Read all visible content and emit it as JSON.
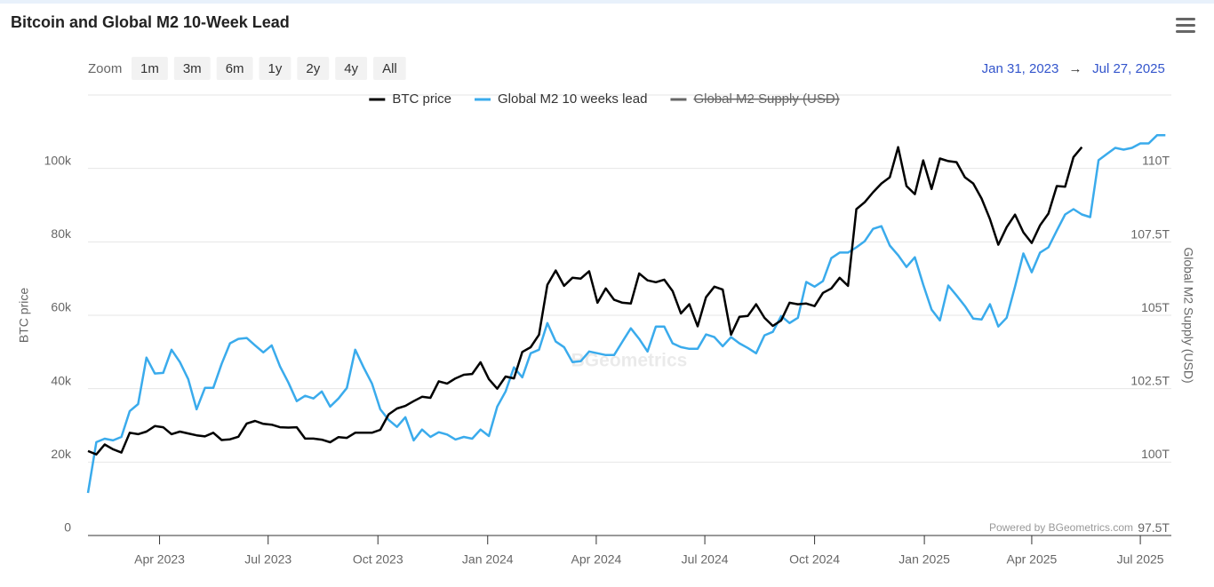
{
  "chart_data": {
    "type": "line",
    "title": "Bitcoin and Global M2 10-Week Lead",
    "zoom_label": "Zoom",
    "zoom_buttons": [
      "1m",
      "3m",
      "6m",
      "1y",
      "2y",
      "4y",
      "All"
    ],
    "range": {
      "from": "Jan 31, 2023",
      "arrow": "→",
      "to": "Jul 27, 2025"
    },
    "y_label": "BTC price",
    "y2_label": "Global M2 Supply (USD)",
    "credits": "Powered by BGeometrics.com",
    "watermark": "BGeometrics",
    "xlim": [
      "2023-01-31",
      "2025-07-27"
    ],
    "xticks": [
      {
        "value": "2023-04-01",
        "label": "Apr 2023"
      },
      {
        "value": "2023-07-01",
        "label": "Jul 2023"
      },
      {
        "value": "2023-10-01",
        "label": "Oct 2023"
      },
      {
        "value": "2024-01-01",
        "label": "Jan 2024"
      },
      {
        "value": "2024-04-01",
        "label": "Apr 2024"
      },
      {
        "value": "2024-07-01",
        "label": "Jul 2024"
      },
      {
        "value": "2024-10-01",
        "label": "Oct 2024"
      },
      {
        "value": "2025-01-01",
        "label": "Jan 2025"
      },
      {
        "value": "2025-04-01",
        "label": "Apr 2025"
      },
      {
        "value": "2025-07-01",
        "label": "Jul 2025"
      }
    ],
    "ylim": [
      0,
      120000
    ],
    "yticks": [
      0,
      {
        "value": 20000,
        "label": "20k"
      },
      {
        "value": 40000,
        "label": "40k"
      },
      {
        "value": 60000,
        "label": "60k"
      },
      {
        "value": 80000,
        "label": "80k"
      },
      {
        "value": 100000,
        "label": "100k"
      }
    ],
    "y2lim": [
      97.26,
      112.27
    ],
    "y2ticks": [
      {
        "value": 97.5,
        "label": "97.5T"
      },
      {
        "value": 100,
        "label": "100T"
      },
      {
        "value": 102.5,
        "label": "102.5T"
      },
      {
        "value": 105,
        "label": "105T"
      },
      {
        "value": 107.5,
        "label": "107.5T"
      },
      {
        "value": 110,
        "label": "110T"
      }
    ],
    "grid": true,
    "x": [
      "2023-01-31",
      "2023-02-07",
      "2023-02-14",
      "2023-02-21",
      "2023-02-28",
      "2023-03-07",
      "2023-03-14",
      "2023-03-21",
      "2023-03-28",
      "2023-04-04",
      "2023-04-11",
      "2023-04-18",
      "2023-04-25",
      "2023-05-02",
      "2023-05-09",
      "2023-05-16",
      "2023-05-23",
      "2023-05-30",
      "2023-06-06",
      "2023-06-13",
      "2023-06-20",
      "2023-06-27",
      "2023-07-04",
      "2023-07-11",
      "2023-07-18",
      "2023-07-25",
      "2023-08-01",
      "2023-08-08",
      "2023-08-15",
      "2023-08-22",
      "2023-08-29",
      "2023-09-05",
      "2023-09-12",
      "2023-09-19",
      "2023-09-26",
      "2023-10-03",
      "2023-10-10",
      "2023-10-17",
      "2023-10-24",
      "2023-10-31",
      "2023-11-07",
      "2023-11-14",
      "2023-11-21",
      "2023-11-28",
      "2023-12-05",
      "2023-12-12",
      "2023-12-19",
      "2023-12-26",
      "2024-01-02",
      "2024-01-09",
      "2024-01-16",
      "2024-01-23",
      "2024-01-30",
      "2024-02-06",
      "2024-02-13",
      "2024-02-20",
      "2024-02-27",
      "2024-03-05",
      "2024-03-12",
      "2024-03-19",
      "2024-03-26",
      "2024-04-02",
      "2024-04-09",
      "2024-04-16",
      "2024-04-23",
      "2024-04-30",
      "2024-05-07",
      "2024-05-14",
      "2024-05-21",
      "2024-05-28",
      "2024-06-04",
      "2024-06-11",
      "2024-06-18",
      "2024-06-25",
      "2024-07-02",
      "2024-07-09",
      "2024-07-16",
      "2024-07-23",
      "2024-07-30",
      "2024-08-06",
      "2024-08-13",
      "2024-08-20",
      "2024-08-27",
      "2024-09-03",
      "2024-09-10",
      "2024-09-17",
      "2024-09-24",
      "2024-10-01",
      "2024-10-08",
      "2024-10-15",
      "2024-10-22",
      "2024-10-29",
      "2024-11-05",
      "2024-11-12",
      "2024-11-19",
      "2024-11-26",
      "2024-12-03",
      "2024-12-10",
      "2024-12-17",
      "2024-12-24",
      "2024-12-31",
      "2025-01-07",
      "2025-01-14",
      "2025-01-21",
      "2025-01-28",
      "2025-02-04",
      "2025-02-11",
      "2025-02-18",
      "2025-02-25",
      "2025-03-04",
      "2025-03-11",
      "2025-03-18",
      "2025-03-25",
      "2025-04-01",
      "2025-04-08",
      "2025-04-15",
      "2025-04-22",
      "2025-04-29",
      "2025-05-06",
      "2025-05-13",
      "2025-05-20",
      "2025-05-27",
      "2025-06-03",
      "2025-06-10",
      "2025-06-17",
      "2025-06-24",
      "2025-07-01",
      "2025-07-08",
      "2025-07-15",
      "2025-07-22"
    ],
    "series": [
      {
        "name": "BTC price",
        "color": "#000000",
        "visible": true,
        "values": [
          23000,
          22100,
          24800,
          23500,
          22600,
          28000,
          27600,
          28300,
          29800,
          29500,
          27600,
          28300,
          27800,
          27300,
          27000,
          28000,
          26000,
          26200,
          26900,
          30500,
          31200,
          30400,
          30200,
          29500,
          29400,
          29500,
          26400,
          26400,
          26100,
          25400,
          26800,
          26600,
          28000,
          28000,
          28000,
          28800,
          33000,
          34600,
          35300,
          36600,
          37800,
          37500,
          42000,
          41400,
          42800,
          43800,
          44000,
          47200,
          42600,
          40000,
          43300,
          42800,
          50000,
          51300,
          54700,
          68300,
          72200,
          68000,
          70200,
          70000,
          72000,
          63400,
          67300,
          64200,
          63400,
          63200,
          71400,
          69500,
          69000,
          69700,
          66600,
          60500,
          63000,
          57000,
          64900,
          67800,
          67000,
          54700,
          59600,
          59800,
          63000,
          59300,
          57100,
          58600,
          63400,
          63000,
          63200,
          62500,
          66100,
          67300,
          70200,
          68000,
          88900,
          90800,
          93500,
          95900,
          97600,
          105800,
          95200,
          93000,
          102200,
          94400,
          102700,
          102000,
          101700,
          97600,
          95900,
          91800,
          86200,
          79200,
          84000,
          87400,
          82600,
          79700,
          84500,
          87700,
          95200,
          95000,
          103100,
          105800,
          null,
          null,
          null,
          null,
          null,
          null,
          null,
          null,
          null,
          null
        ]
      },
      {
        "name": "Global M2 10 weeks lead",
        "color": "#3aabec",
        "visible": true,
        "axis": "y2",
        "values": [
          98.71,
          100.44,
          100.56,
          100.5,
          100.62,
          101.5,
          101.74,
          103.32,
          102.78,
          102.8,
          103.59,
          103.17,
          102.59,
          101.56,
          102.29,
          102.29,
          103.11,
          103.81,
          103.96,
          103.99,
          103.74,
          103.5,
          103.74,
          103.02,
          102.47,
          101.84,
          102.02,
          101.93,
          102.17,
          101.65,
          101.93,
          102.29,
          103.59,
          102.99,
          102.44,
          101.56,
          101.2,
          100.96,
          101.29,
          100.5,
          100.87,
          100.62,
          100.78,
          100.7,
          100.53,
          100.62,
          100.56,
          100.87,
          100.65,
          101.65,
          102.17,
          102.99,
          102.65,
          103.47,
          103.59,
          104.5,
          103.87,
          103.68,
          103.17,
          103.2,
          103.53,
          103.47,
          103.41,
          103.41,
          103.87,
          104.32,
          103.96,
          103.53,
          104.38,
          104.38,
          103.81,
          103.68,
          103.62,
          103.62,
          104.11,
          104.02,
          103.71,
          104.02,
          103.81,
          103.65,
          103.47,
          104.08,
          104.2,
          104.74,
          104.5,
          104.68,
          105.9,
          105.74,
          105.93,
          106.71,
          106.9,
          106.9,
          107.08,
          107.29,
          107.71,
          107.8,
          107.14,
          106.81,
          106.41,
          106.74,
          105.81,
          104.96,
          104.59,
          105.78,
          105.44,
          105.08,
          104.65,
          104.62,
          105.14,
          104.38,
          104.68,
          105.74,
          106.87,
          106.23,
          106.9,
          107.08,
          107.65,
          108.2,
          108.38,
          108.2,
          108.11,
          110.05,
          110.26,
          110.47,
          110.41,
          110.47,
          110.62,
          110.62,
          110.9,
          110.9
        ]
      },
      {
        "name": "Global M2 Supply (USD)",
        "color": "#666666",
        "visible": false,
        "axis": "y2"
      }
    ]
  }
}
